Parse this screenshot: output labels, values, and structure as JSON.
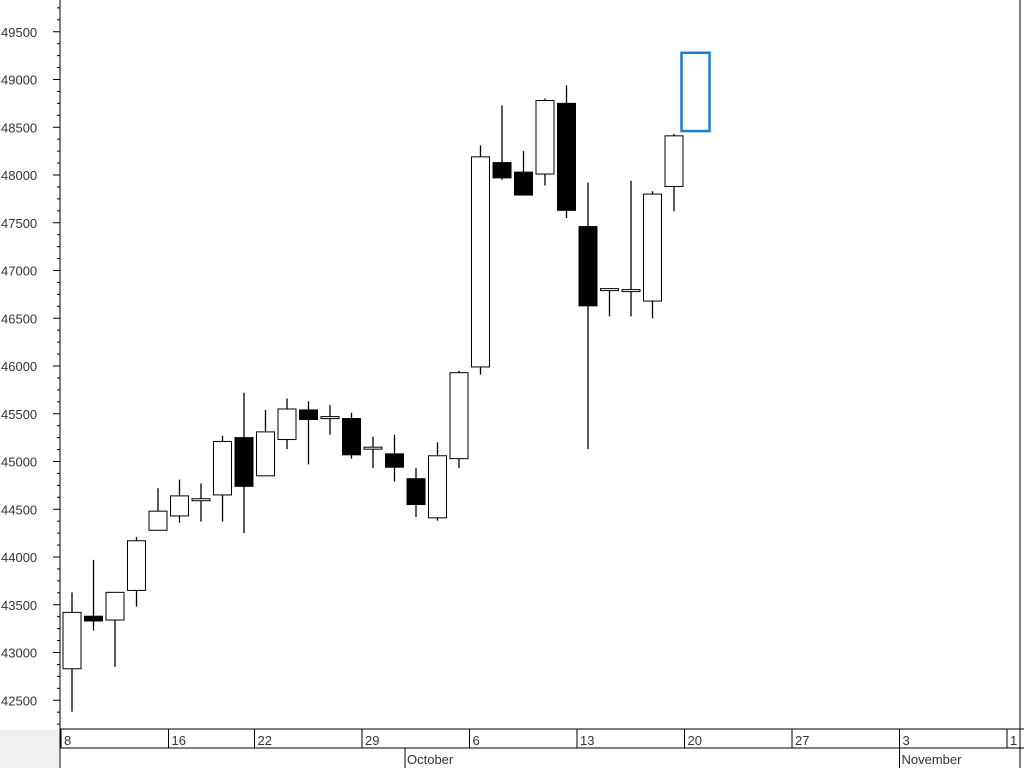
{
  "chart_data": {
    "type": "candlestick",
    "title": "",
    "xlabel": "",
    "ylabel": "",
    "ylim": [
      42250,
      49750
    ],
    "y_ticks": [
      42500,
      43000,
      43500,
      44000,
      44500,
      45000,
      45500,
      46000,
      46500,
      47000,
      47500,
      48000,
      48500,
      49000,
      49500
    ],
    "grid": false,
    "x_day_labels": [
      {
        "label": "8",
        "slot": 0
      },
      {
        "label": "16",
        "slot": 5
      },
      {
        "label": "22",
        "slot": 9
      },
      {
        "label": "29",
        "slot": 14
      },
      {
        "label": "6",
        "slot": 19
      },
      {
        "label": "13",
        "slot": 24
      },
      {
        "label": "20",
        "slot": 29
      },
      {
        "label": "27",
        "slot": 34
      },
      {
        "label": "3",
        "slot": 39
      },
      {
        "label": "1",
        "slot": 44
      }
    ],
    "x_month_labels": [
      {
        "label": "October",
        "slot": 16
      },
      {
        "label": "November",
        "slot": 39
      }
    ],
    "candles": [
      {
        "open": 42830,
        "high": 43630,
        "low": 42380,
        "close": 43420
      },
      {
        "open": 43380,
        "high": 43970,
        "low": 43230,
        "close": 43330
      },
      {
        "open": 43340,
        "high": 43630,
        "low": 42850,
        "close": 43630
      },
      {
        "open": 43650,
        "high": 44210,
        "low": 43480,
        "close": 44170
      },
      {
        "open": 44280,
        "high": 44720,
        "low": 44280,
        "close": 44480
      },
      {
        "open": 44430,
        "high": 44810,
        "low": 44360,
        "close": 44640
      },
      {
        "open": 44590,
        "high": 44770,
        "low": 44370,
        "close": 44610
      },
      {
        "open": 44650,
        "high": 45270,
        "low": 44370,
        "close": 45210
      },
      {
        "open": 45250,
        "high": 45720,
        "low": 44250,
        "close": 44740
      },
      {
        "open": 44850,
        "high": 45540,
        "low": 44850,
        "close": 45310
      },
      {
        "open": 45230,
        "high": 45660,
        "low": 45130,
        "close": 45550
      },
      {
        "open": 45540,
        "high": 45630,
        "low": 44970,
        "close": 45440
      },
      {
        "open": 45470,
        "high": 45590,
        "low": 45280,
        "close": 45470
      },
      {
        "open": 45450,
        "high": 45510,
        "low": 45030,
        "close": 45070
      },
      {
        "open": 45150,
        "high": 45260,
        "low": 44930,
        "close": 45150
      },
      {
        "open": 45080,
        "high": 45280,
        "low": 44790,
        "close": 44940
      },
      {
        "open": 44820,
        "high": 44930,
        "low": 44420,
        "close": 44550
      },
      {
        "open": 44410,
        "high": 45200,
        "low": 44380,
        "close": 45060
      },
      {
        "open": 45030,
        "high": 45950,
        "low": 44930,
        "close": 45930
      },
      {
        "open": 45990,
        "high": 48310,
        "low": 45910,
        "close": 48190
      },
      {
        "open": 48130,
        "high": 48730,
        "low": 47950,
        "close": 47970
      },
      {
        "open": 48030,
        "high": 48250,
        "low": 47790,
        "close": 47790
      },
      {
        "open": 48010,
        "high": 48800,
        "low": 47890,
        "close": 48780
      },
      {
        "open": 48750,
        "high": 48940,
        "low": 47550,
        "close": 47630
      },
      {
        "open": 47460,
        "high": 47920,
        "low": 45130,
        "close": 46630
      },
      {
        "open": 46810,
        "high": 46810,
        "low": 46520,
        "close": 46810
      },
      {
        "open": 46800,
        "high": 47940,
        "low": 46520,
        "close": 46800
      },
      {
        "open": 46680,
        "high": 47830,
        "low": 46500,
        "close": 47800
      },
      {
        "open": 47880,
        "high": 48430,
        "low": 47620,
        "close": 48410
      }
    ],
    "highlight_box": {
      "slot": 29,
      "low": 48460,
      "high": 49280
    }
  }
}
